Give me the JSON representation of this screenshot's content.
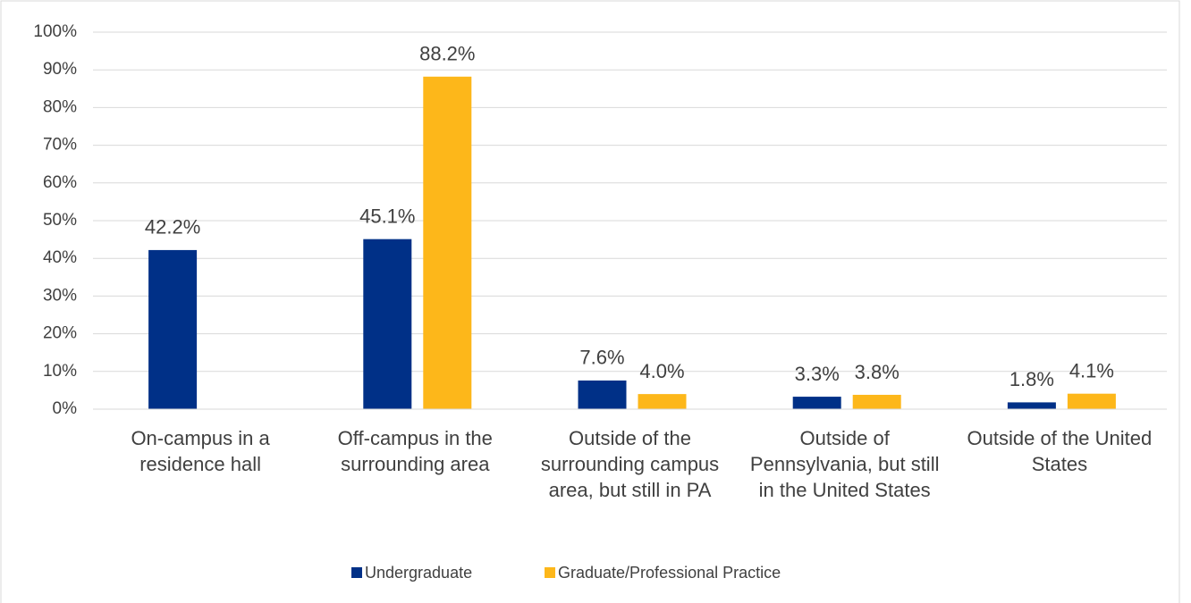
{
  "chart_data": {
    "type": "bar",
    "categories": [
      "On-campus in a residence hall",
      "Off-campus in the surrounding area",
      "Outside of the surrounding campus area, but still in PA",
      "Outside of Pennsylvania, but still in the United States",
      "Outside of the United States"
    ],
    "series": [
      {
        "name": "Undergraduate",
        "color": "#003087",
        "values": [
          42.2,
          45.1,
          7.6,
          3.3,
          1.8
        ],
        "value_labels": [
          "42.2%",
          "45.1%",
          "7.6%",
          "3.3%",
          "1.8%"
        ]
      },
      {
        "name": "Graduate/Professional Practice",
        "color": "#fdb71a",
        "values": [
          null,
          88.2,
          4.0,
          3.8,
          4.1
        ],
        "value_labels": [
          null,
          "88.2%",
          "4.0%",
          "3.8%",
          "4.1%"
        ]
      }
    ],
    "ylim": [
      0,
      100
    ],
    "yticks": [
      {
        "value": 0,
        "label": "0%"
      },
      {
        "value": 10,
        "label": "10%"
      },
      {
        "value": 20,
        "label": "20%"
      },
      {
        "value": 30,
        "label": "30%"
      },
      {
        "value": 40,
        "label": "40%"
      },
      {
        "value": 50,
        "label": "50%"
      },
      {
        "value": 60,
        "label": "60%"
      },
      {
        "value": 70,
        "label": "70%"
      },
      {
        "value": 80,
        "label": "80%"
      },
      {
        "value": 90,
        "label": "90%"
      },
      {
        "value": 100,
        "label": "100%"
      }
    ],
    "grid": true,
    "legend": "bottom"
  }
}
